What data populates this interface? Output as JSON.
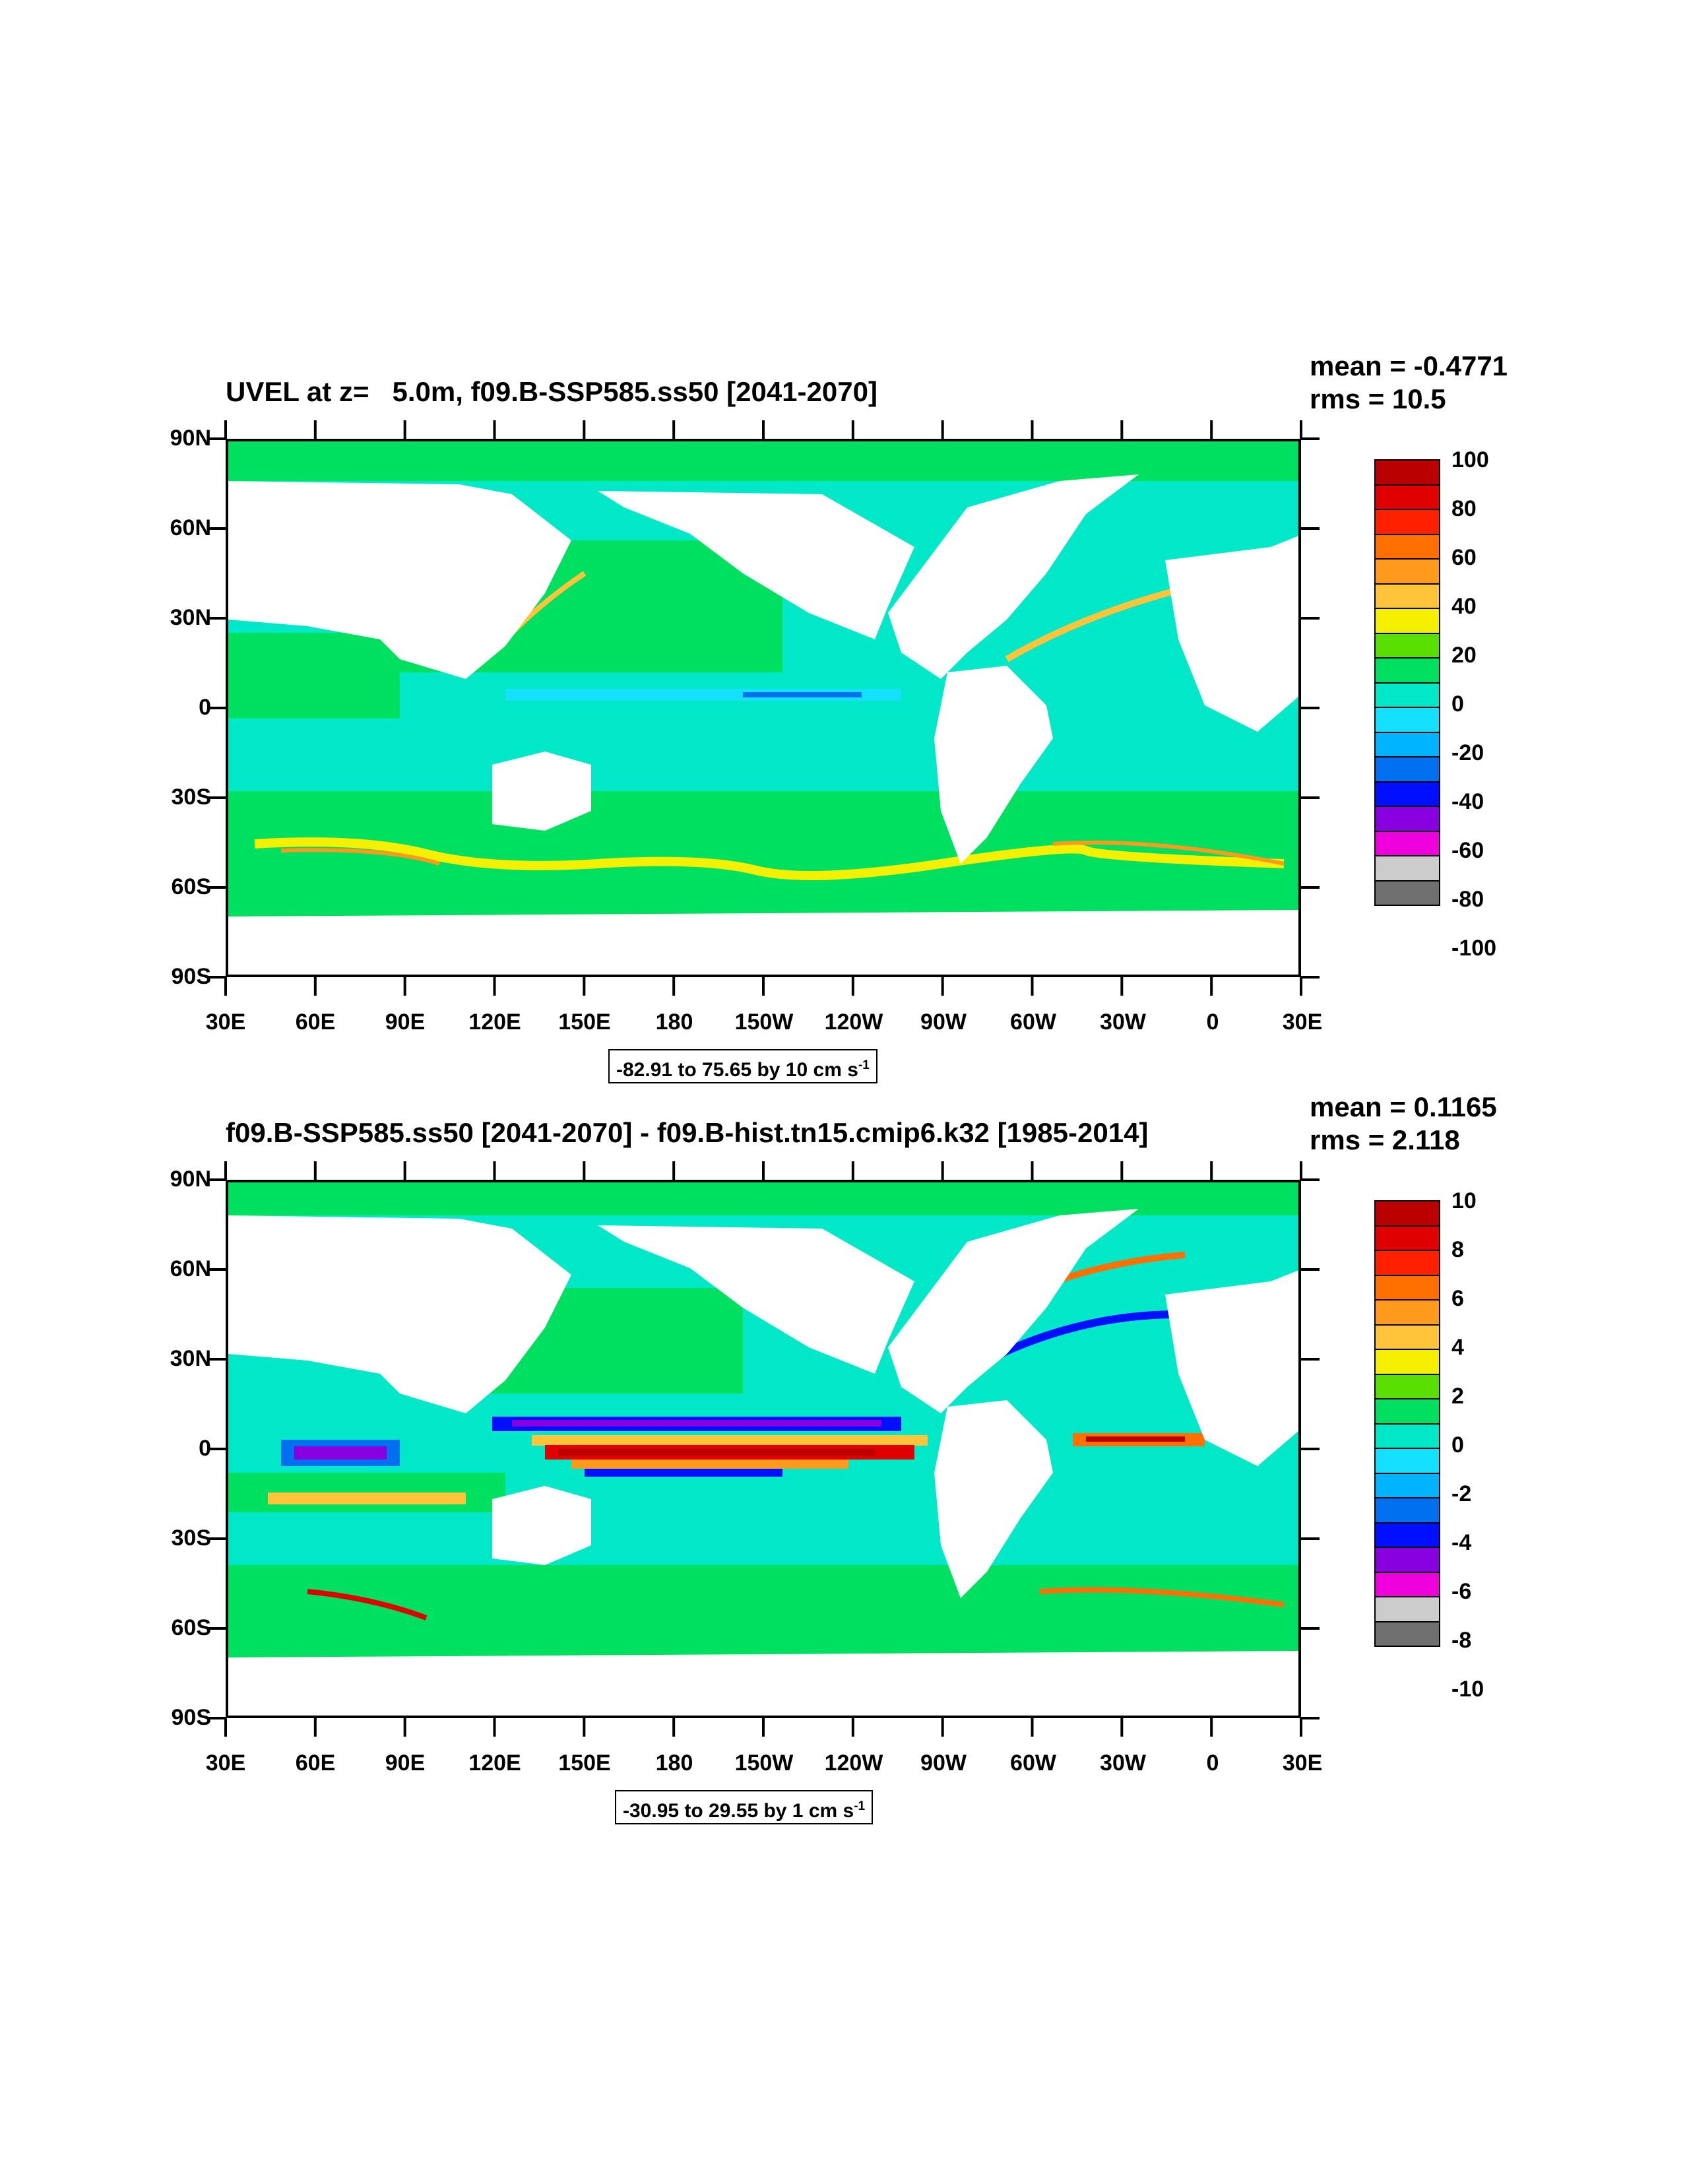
{
  "colorbar_colors": [
    "#bb0000",
    "#e00000",
    "#ff2000",
    "#ff7000",
    "#ff9a1c",
    "#ffc43a",
    "#f5f000",
    "#5ae000",
    "#00e060",
    "#00e8c8",
    "#14e0ff",
    "#00b4ff",
    "#0070f0",
    "#0010ff",
    "#8800e0",
    "#ee00dd",
    "#cccccc",
    "#707070"
  ],
  "land_color": "#ffffff",
  "panels": [
    {
      "title": "UVEL at z=   5.0m, f09.B-SSP585.ss50 [2041-2070]",
      "mean": "mean = -0.4771",
      "rms": "rms = 10.5",
      "contour_info": "-82.91 to 75.65 by 10 cm s",
      "contour_unit_exp": "-1",
      "colorbar_labels": [
        "100",
        "80",
        "60",
        "40",
        "20",
        "0",
        "-20",
        "-40",
        "-60",
        "-80",
        "-100"
      ],
      "y_labels": [
        "90N",
        "60N",
        "30N",
        "0",
        "30S",
        "60S",
        "90S"
      ],
      "x_labels": [
        "30E",
        "60E",
        "90E",
        "120E",
        "150E",
        "180",
        "150W",
        "120W",
        "90W",
        "60W",
        "30W",
        "0",
        "30E"
      ]
    },
    {
      "title": "f09.B-SSP585.ss50 [2041-2070] - f09.B-hist.tn15.cmip6.k32 [1985-2014]",
      "mean": "mean = 0.1165",
      "rms": "rms = 2.118",
      "contour_info": "-30.95 to 29.55 by 1 cm s",
      "contour_unit_exp": "-1",
      "colorbar_labels": [
        "10",
        "8",
        "6",
        "4",
        "2",
        "0",
        "-2",
        "-4",
        "-6",
        "-8",
        "-10"
      ],
      "y_labels": [
        "90N",
        "60N",
        "30N",
        "0",
        "30S",
        "60S",
        "90S"
      ],
      "x_labels": [
        "30E",
        "60E",
        "90E",
        "120E",
        "150E",
        "180",
        "150W",
        "120W",
        "90W",
        "60W",
        "30W",
        "0",
        "30E"
      ]
    }
  ]
}
